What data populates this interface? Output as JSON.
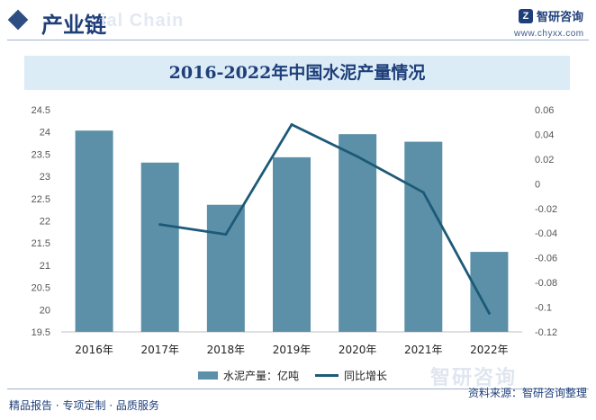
{
  "header": {
    "section_title": "产业链",
    "watermark_text": "ial Chain",
    "logo_mark": "Z",
    "logo_name": "智研咨询",
    "logo_url": "www.chyxx.com"
  },
  "chart_data": {
    "type": "bar",
    "title": "2016-2022年中国水泥产量情况",
    "categories": [
      "2016年",
      "2017年",
      "2018年",
      "2019年",
      "2020年",
      "2021年",
      "2022年"
    ],
    "series": [
      {
        "name": "水泥产量：亿吨",
        "kind": "bar",
        "axis": "left",
        "color": "#5b90a8",
        "values": [
          24.03,
          23.31,
          22.36,
          23.43,
          23.95,
          23.78,
          21.3
        ]
      },
      {
        "name": "同比增长",
        "kind": "line",
        "axis": "right",
        "color": "#1d5a78",
        "values": [
          null,
          -0.033,
          -0.041,
          0.048,
          0.022,
          -0.007,
          -0.105
        ]
      }
    ],
    "left_axis": {
      "min": 19.5,
      "max": 24.5,
      "ticks": [
        "19.5",
        "20",
        "20.5",
        "21",
        "21.5",
        "22",
        "22.5",
        "23",
        "23.5",
        "24",
        "24.5"
      ]
    },
    "right_axis": {
      "min": -0.12,
      "max": 0.06,
      "ticks": [
        "-0.12",
        "-0.1",
        "-0.08",
        "-0.06",
        "-0.04",
        "-0.02",
        "0",
        "0.02",
        "0.04",
        "0.06"
      ]
    },
    "grid": false,
    "legend_position": "bottom"
  },
  "footer": {
    "left": "精品报告 · 专项定制 · 品质服务",
    "right": "资料来源：智研咨询整理",
    "logo_text": "智研咨询"
  }
}
